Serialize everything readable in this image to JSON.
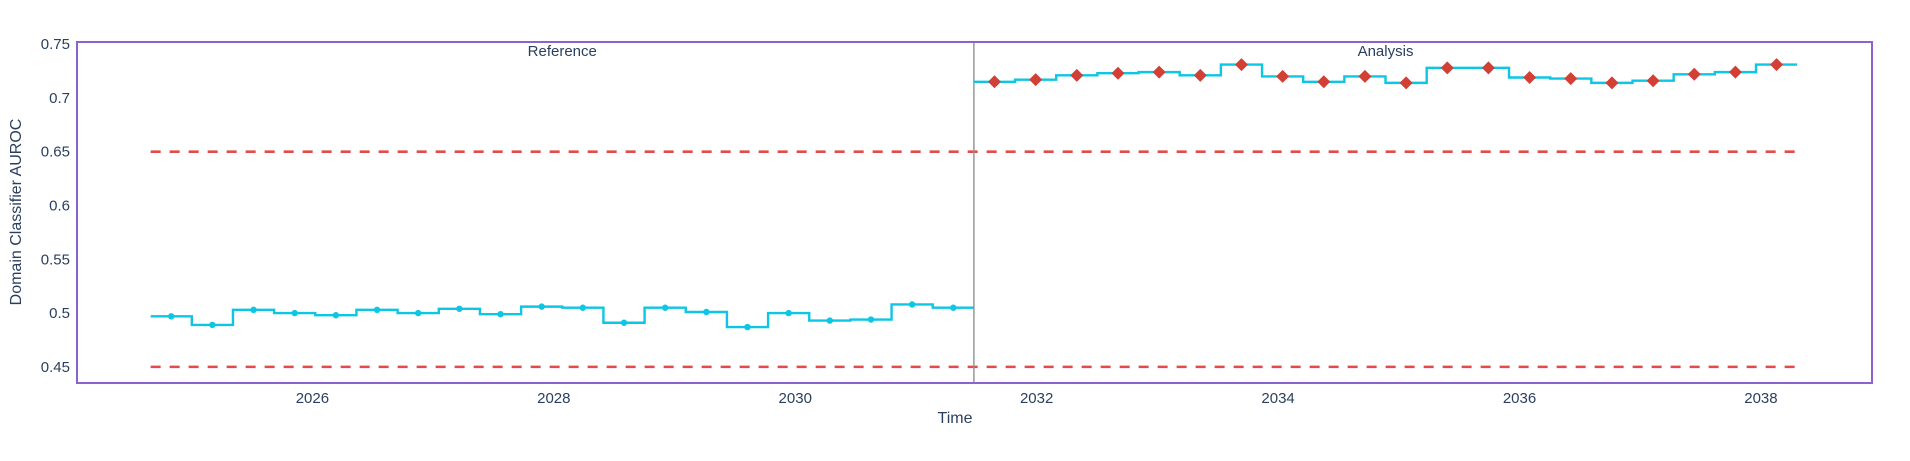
{
  "chart_data": {
    "type": "line",
    "subtype": "stepped-chunk-drift-plot",
    "title": "",
    "xlabel": "Time",
    "ylabel": "Domain Classifier AUROC",
    "x_ticks": [
      "2026",
      "2028",
      "2030",
      "2032",
      "2034",
      "2036",
      "2038"
    ],
    "x_tick_years": [
      2026,
      2028,
      2030,
      2032,
      2034,
      2036,
      2038
    ],
    "y_ticks": [
      "0.75",
      "0.7",
      "0.65",
      "0.6",
      "0.55",
      "0.5",
      "0.45"
    ],
    "y_tick_values": [
      0.75,
      0.7,
      0.65,
      0.6,
      0.55,
      0.5,
      0.45
    ],
    "xlim": [
      2024.05,
      2038.92
    ],
    "ylim": [
      0.435,
      0.752
    ],
    "grid": false,
    "legend_position": "none",
    "regions": [
      {
        "label": "Reference"
      },
      {
        "label": "Analysis"
      }
    ],
    "separator_year": 2031.48,
    "chunk_width_years": 0.341,
    "thresholds": [
      {
        "name": "upper-threshold",
        "value": 0.65,
        "style": "dashed"
      },
      {
        "name": "lower-threshold",
        "value": 0.45,
        "style": "dashed"
      }
    ],
    "series": [
      {
        "name": "Reference",
        "start_year": 2024.66,
        "marker": "circle",
        "alerts": false,
        "values": [
          0.497,
          0.489,
          0.503,
          0.5,
          0.498,
          0.503,
          0.5,
          0.504,
          0.499,
          0.506,
          0.505,
          0.491,
          0.505,
          0.501,
          0.487,
          0.5,
          0.493,
          0.494,
          0.508,
          0.505
        ]
      },
      {
        "name": "Analysis",
        "start_year": 2031.48,
        "marker": "diamond",
        "alerts": true,
        "values": [
          0.715,
          0.717,
          0.721,
          0.723,
          0.724,
          0.721,
          0.731,
          0.72,
          0.715,
          0.72,
          0.714,
          0.728,
          0.728,
          0.719,
          0.718,
          0.714,
          0.716,
          0.722,
          0.724,
          0.731
        ]
      }
    ],
    "colors": {
      "line": "#0cc6e4",
      "alert_marker": "#d23f35",
      "threshold": "#e34a4a",
      "border": "#8b63ce",
      "separator": "#909090",
      "text": "#2a3f5f",
      "background": "#ffffff"
    }
  }
}
